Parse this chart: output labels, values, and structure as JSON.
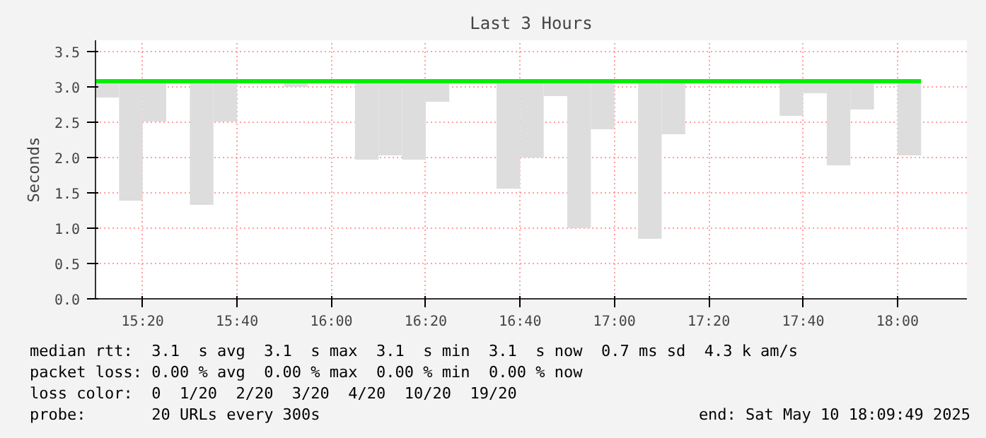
{
  "chart_data": {
    "type": "bar",
    "title": "Last 3 Hours",
    "ylabel": "Seconds",
    "xlim": [
      15.1667,
      18.245
    ],
    "ylim": [
      0,
      3.66
    ],
    "xticks": [
      {
        "value": 15.3333,
        "label": "15:20"
      },
      {
        "value": 15.6667,
        "label": "15:40"
      },
      {
        "value": 16,
        "label": "16:00"
      },
      {
        "value": 16.3333,
        "label": "16:20"
      },
      {
        "value": 16.6667,
        "label": "16:40"
      },
      {
        "value": 17,
        "label": "17:00"
      },
      {
        "value": 17.3333,
        "label": "17:20"
      },
      {
        "value": 17.6667,
        "label": "17:40"
      },
      {
        "value": 18,
        "label": "18:00"
      }
    ],
    "yticks": [
      {
        "value": 0,
        "label": "0.0"
      },
      {
        "value": 0.5,
        "label": "0.5"
      },
      {
        "value": 1,
        "label": "1.0"
      },
      {
        "value": 1.5,
        "label": "1.5"
      },
      {
        "value": 2,
        "label": "2.0"
      },
      {
        "value": 2.5,
        "label": "2.5"
      },
      {
        "value": 3,
        "label": "3.0"
      },
      {
        "value": 3.5,
        "label": "3.5"
      }
    ],
    "grid": true,
    "series": [
      {
        "color": "#dddddd",
        "x": [
          15.2083,
          15.2917,
          15.375,
          15.4583,
          15.5417,
          15.625,
          15.7083,
          15.7917,
          15.875,
          15.9583,
          16.0417,
          16.125,
          16.2083,
          16.2917,
          16.375,
          16.4583,
          16.5417,
          16.625,
          16.7083,
          16.7917,
          16.875,
          16.9583,
          17.0417,
          17.125,
          17.2083,
          17.2917,
          17.375,
          17.4583,
          17.5417,
          17.625,
          17.7083,
          17.7917,
          17.875,
          17.9583,
          18.0417
        ],
        "base": [
          2.85,
          1.39,
          2.51,
          null,
          1.33,
          2.51,
          null,
          null,
          3.0,
          null,
          null,
          1.97,
          2.03,
          1.97,
          2.79,
          null,
          null,
          1.56,
          2.0,
          2.87,
          1.0,
          2.4,
          null,
          0.85,
          2.33,
          null,
          null,
          null,
          null,
          2.59,
          2.91,
          1.89,
          2.68,
          null,
          2.03
        ],
        "values": [
          0.2,
          1.66,
          0.54,
          null,
          1.72,
          0.54,
          null,
          null,
          0.05,
          null,
          null,
          1.08,
          1.02,
          1.08,
          0.26,
          null,
          null,
          1.49,
          1.05,
          0.18,
          2.05,
          0.65,
          null,
          2.2,
          0.72,
          null,
          null,
          null,
          null,
          0.46,
          0.14,
          1.16,
          0.37,
          null,
          1.02
        ]
      },
      {
        "type": "line",
        "color": "#00ee00",
        "x": [
          15.1667,
          18.0833
        ],
        "values": [
          3.08,
          3.08
        ]
      }
    ],
    "annotations": [
      "median rtt:  3.1  s avg  3.1  s max  3.1  s min  3.1  s now  0.7 ms sd  4.3 k am/s",
      "packet loss: 0.00 % avg  0.00 % max  0.00 % min  0.00 % now",
      "loss color:  0  1/20  2/20  3/20  4/20  10/20  19/20",
      "probe:       20 URLs every 300s",
      "end: Sat May 10 18:09:49 2025"
    ]
  }
}
